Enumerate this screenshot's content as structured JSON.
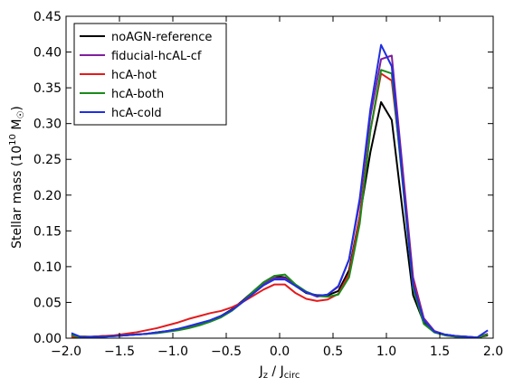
{
  "chart_data": {
    "type": "line",
    "title": "",
    "xlabel": "J",
    "xlabel_sub_z": "z",
    "xlabel_sep": " / J",
    "xlabel_sub_circ": "circ",
    "ylabel": "Stellar mass (10",
    "ylabel_exp": "10",
    "ylabel_unit": " M",
    "ylabel_sub": "☉",
    "ylabel_close": ")",
    "xlim": [
      -2.0,
      2.0
    ],
    "ylim": [
      0.0,
      0.45
    ],
    "xticks": [
      "−2.0",
      "−1.5",
      "−1.0",
      "−0.5",
      "0.0",
      "0.5",
      "1.0",
      "1.5",
      "2.0"
    ],
    "yticks": [
      "0.00",
      "0.05",
      "0.10",
      "0.15",
      "0.20",
      "0.25",
      "0.30",
      "0.35",
      "0.40",
      "0.45"
    ],
    "grid": false,
    "legend_position": "top-left",
    "x": [
      -1.95,
      -1.85,
      -1.75,
      -1.65,
      -1.55,
      -1.45,
      -1.35,
      -1.25,
      -1.15,
      -1.05,
      -0.95,
      -0.85,
      -0.75,
      -0.65,
      -0.55,
      -0.45,
      -0.35,
      -0.25,
      -0.15,
      -0.05,
      0.05,
      0.15,
      0.25,
      0.35,
      0.45,
      0.55,
      0.65,
      0.75,
      0.85,
      0.95,
      1.05,
      1.15,
      1.25,
      1.35,
      1.45,
      1.55,
      1.65,
      1.75,
      1.85,
      1.95
    ],
    "series": [
      {
        "name": "noAGN-reference",
        "color": "#000000",
        "values": [
          0.003,
          0.002,
          0.002,
          0.003,
          0.003,
          0.004,
          0.005,
          0.006,
          0.008,
          0.01,
          0.013,
          0.016,
          0.02,
          0.025,
          0.031,
          0.04,
          0.052,
          0.065,
          0.078,
          0.087,
          0.085,
          0.073,
          0.063,
          0.06,
          0.06,
          0.066,
          0.095,
          0.17,
          0.26,
          0.33,
          0.305,
          0.18,
          0.06,
          0.022,
          0.009,
          0.005,
          0.003,
          0.002,
          0.001,
          0.004
        ]
      },
      {
        "name": "fiducial-hcAL-cf",
        "color": "#7f1f9f",
        "values": [
          0.005,
          0.001,
          0.001,
          0.002,
          0.003,
          0.004,
          0.005,
          0.006,
          0.008,
          0.01,
          0.012,
          0.015,
          0.019,
          0.024,
          0.03,
          0.039,
          0.051,
          0.064,
          0.076,
          0.084,
          0.084,
          0.073,
          0.064,
          0.058,
          0.061,
          0.072,
          0.11,
          0.19,
          0.31,
          0.39,
          0.395,
          0.24,
          0.085,
          0.028,
          0.01,
          0.005,
          0.003,
          0.002,
          0.001,
          0.006
        ]
      },
      {
        "name": "hcA-hot",
        "color": "#e41a1c",
        "values": [
          0.002,
          0.001,
          0.002,
          0.003,
          0.004,
          0.006,
          0.008,
          0.011,
          0.014,
          0.018,
          0.022,
          0.027,
          0.031,
          0.035,
          0.038,
          0.043,
          0.05,
          0.059,
          0.068,
          0.075,
          0.075,
          0.063,
          0.055,
          0.052,
          0.054,
          0.062,
          0.09,
          0.17,
          0.29,
          0.37,
          0.36,
          0.23,
          0.08,
          0.025,
          0.009,
          0.004,
          0.002,
          0.001,
          0.001,
          0.005
        ]
      },
      {
        "name": "hcA-both",
        "color": "#1a8a1a",
        "values": [
          0.004,
          0.001,
          0.001,
          0.002,
          0.003,
          0.004,
          0.005,
          0.006,
          0.007,
          0.009,
          0.011,
          0.014,
          0.018,
          0.023,
          0.029,
          0.038,
          0.05,
          0.065,
          0.078,
          0.087,
          0.089,
          0.075,
          0.065,
          0.059,
          0.058,
          0.061,
          0.085,
          0.16,
          0.29,
          0.375,
          0.37,
          0.22,
          0.07,
          0.02,
          0.008,
          0.004,
          0.002,
          0.001,
          0.001,
          0.005
        ]
      },
      {
        "name": "hcA-cold",
        "color": "#1f2fe0",
        "values": [
          0.007,
          0.001,
          0.002,
          0.002,
          0.003,
          0.004,
          0.005,
          0.006,
          0.008,
          0.01,
          0.013,
          0.017,
          0.021,
          0.025,
          0.031,
          0.039,
          0.05,
          0.062,
          0.074,
          0.082,
          0.082,
          0.073,
          0.064,
          0.059,
          0.061,
          0.073,
          0.11,
          0.195,
          0.32,
          0.41,
          0.38,
          0.225,
          0.075,
          0.025,
          0.009,
          0.005,
          0.003,
          0.002,
          0.001,
          0.011
        ]
      }
    ]
  }
}
